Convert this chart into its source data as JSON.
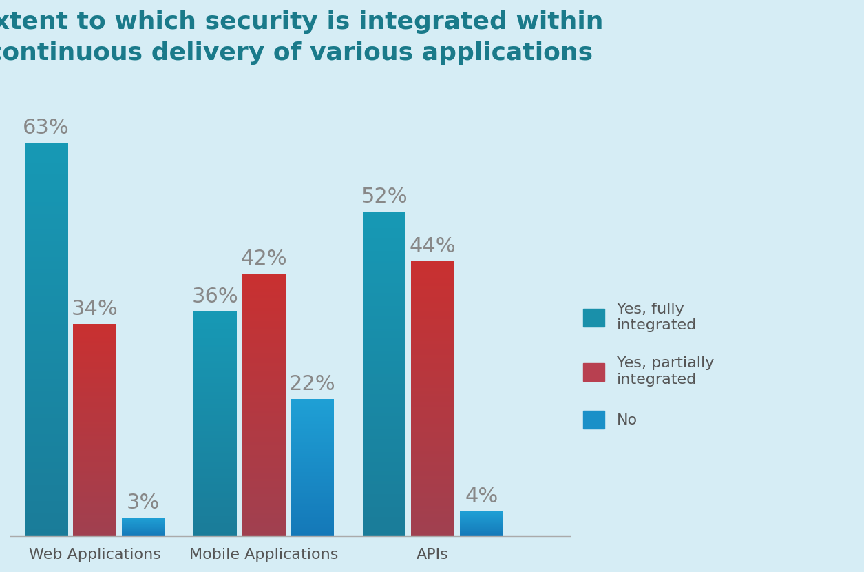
{
  "title": "Extent to which security is integrated within\ncontinuous delivery of various applications",
  "title_color": "#1a7a8a",
  "background_color": "#d6edf5",
  "categories": [
    "Web Applications",
    "Mobile Applications",
    "APIs"
  ],
  "series_fully": [
    63,
    36,
    52
  ],
  "series_partially": [
    34,
    42,
    44
  ],
  "series_no": [
    3,
    22,
    4
  ],
  "teal_top": "#1799b5",
  "teal_bottom": "#1a7c99",
  "red_top": "#c93030",
  "red_bottom": "#a04050",
  "blue_top": "#1fa0d5",
  "blue_bottom": "#1478b8",
  "legend_teal": "#1a90aa",
  "legend_red": "#b84050",
  "legend_blue": "#1a90c8",
  "label_color": "#888888",
  "label_fontsize": 22,
  "title_fontsize": 26,
  "xlabel_fontsize": 16,
  "legend_fontsize": 16,
  "bar_width": 0.22,
  "ylim": [
    0,
    72
  ],
  "legend_label_1": "Yes, fully\nintegrated",
  "legend_label_2": "Yes, partially\nintegrated",
  "legend_label_3": "No"
}
